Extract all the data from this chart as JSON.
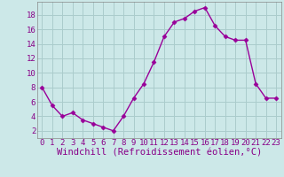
{
  "x": [
    0,
    1,
    2,
    3,
    4,
    5,
    6,
    7,
    8,
    9,
    10,
    11,
    12,
    13,
    14,
    15,
    16,
    17,
    18,
    19,
    20,
    21,
    22,
    23
  ],
  "y": [
    8.0,
    5.5,
    4.0,
    4.5,
    3.5,
    3.0,
    2.5,
    2.0,
    4.0,
    6.5,
    8.5,
    11.5,
    15.0,
    17.0,
    17.5,
    18.5,
    19.0,
    16.5,
    15.0,
    14.5,
    14.5,
    8.5,
    6.5,
    6.5
  ],
  "xlabel": "Windchill (Refroidissement éolien,°C)",
  "ylim": [
    1.0,
    19.8
  ],
  "xlim": [
    -0.5,
    23.5
  ],
  "yticks": [
    2,
    4,
    6,
    8,
    10,
    12,
    14,
    16,
    18
  ],
  "xticks": [
    0,
    1,
    2,
    3,
    4,
    5,
    6,
    7,
    8,
    9,
    10,
    11,
    12,
    13,
    14,
    15,
    16,
    17,
    18,
    19,
    20,
    21,
    22,
    23
  ],
  "line_color": "#990099",
  "marker": "D",
  "marker_size": 2.5,
  "bg_color": "#cce8e8",
  "grid_color": "#aacccc",
  "tick_label_fontsize": 6.5,
  "xlabel_fontsize": 7.5,
  "line_width": 1.0
}
